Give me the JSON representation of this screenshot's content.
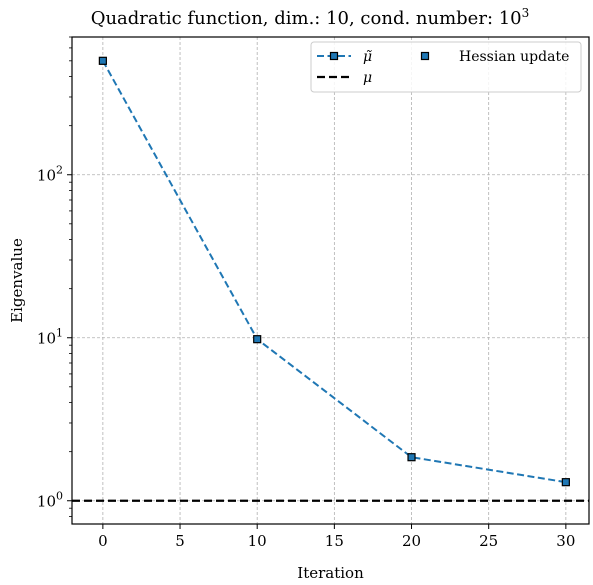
{
  "chart_data": {
    "type": "line",
    "title": "Quadratic function, dim.: 10, cond. number: 10",
    "title_exponent": "3",
    "xlabel": "Iteration",
    "ylabel": "Eigenvalue",
    "xlim": [
      -2,
      31.5
    ],
    "ylim": [
      0.72,
      700
    ],
    "yscale": "log",
    "grid": true,
    "legend_position": "top-right",
    "xticks": [
      {
        "value": 0,
        "label": "0"
      },
      {
        "value": 5,
        "label": "5"
      },
      {
        "value": 10,
        "label": "10"
      },
      {
        "value": 15,
        "label": "15"
      },
      {
        "value": 20,
        "label": "20"
      },
      {
        "value": 25,
        "label": "25"
      },
      {
        "value": 30,
        "label": "30"
      }
    ],
    "yticks": [
      {
        "value": 1,
        "base": "10",
        "exp": "0"
      },
      {
        "value": 10,
        "base": "10",
        "exp": "1"
      },
      {
        "value": 100,
        "base": "10",
        "exp": "2"
      }
    ],
    "series": [
      {
        "name": "μ̃",
        "style": "dashed",
        "color": "#1f77b4",
        "x": [
          0,
          10,
          20,
          30
        ],
        "y": [
          500,
          9.8,
          1.85,
          1.3
        ]
      },
      {
        "name": "μ",
        "style": "dashed",
        "color": "#000000",
        "hline": 1.0
      }
    ],
    "markers": {
      "name": "Hessian update",
      "fill": "#1f77b4",
      "edge": "#000000",
      "x": [
        0,
        10,
        20,
        30
      ],
      "y": [
        500,
        9.8,
        1.85,
        1.3
      ]
    }
  }
}
